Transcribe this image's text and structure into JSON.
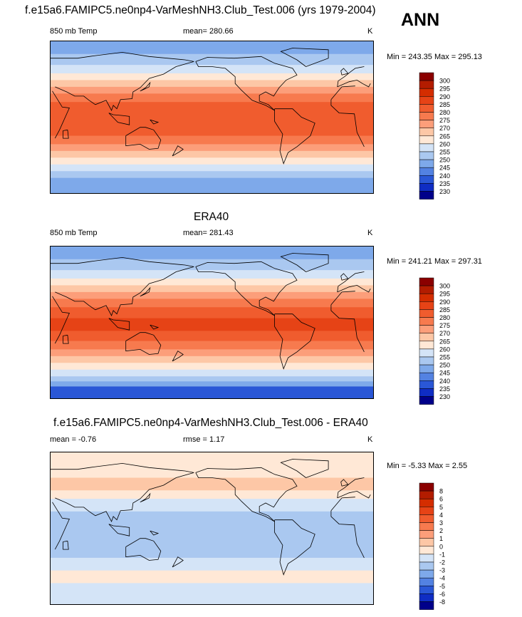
{
  "page": {
    "main_title": "f.e15a6.FAMIPC5.ne0np4-VarMeshNH3.Club_Test.006 (yrs 1979-2004)",
    "season": "ANN"
  },
  "panels": [
    {
      "id": "model",
      "heading": "",
      "left_label": "850 mb Temp",
      "center_label": "mean= 280.66",
      "units": "K",
      "minmax": "Min = 243.35 Max = 295.13"
    },
    {
      "id": "obs",
      "heading": "ERA40",
      "left_label": "850 mb Temp",
      "center_label": "mean= 281.43",
      "units": "K",
      "minmax": "Min = 241.21 Max = 297.31"
    },
    {
      "id": "diff",
      "heading": "f.e15a6.FAMIPC5.ne0np4-VarMeshNH3.Club_Test.006 - ERA40",
      "left_label": "mean =  -0.76",
      "center_label": "rmse =   1.17",
      "units": "K",
      "minmax": "Min =  -5.33 Max =   2.55"
    }
  ],
  "colorbars": {
    "temperature": {
      "labels": [
        "300",
        "295",
        "290",
        "285",
        "280",
        "275",
        "270",
        "265",
        "260",
        "255",
        "250",
        "245",
        "240",
        "235",
        "230"
      ],
      "colors": [
        "#8b0000",
        "#b31c00",
        "#d42d00",
        "#e64316",
        "#f05c2e",
        "#f77a4e",
        "#fc9e7a",
        "#fdc7a6",
        "#ffe8d6",
        "#d4e4f7",
        "#aac8f0",
        "#7ea9ea",
        "#5382e2",
        "#2a57d6",
        "#0f2dc4",
        "#00008a"
      ]
    },
    "difference": {
      "labels": [
        "8",
        "6",
        "5",
        "4",
        "3",
        "2",
        "1",
        "0",
        "-1",
        "-2",
        "-3",
        "-4",
        "-5",
        "-6",
        "-8"
      ],
      "colors": [
        "#8b0000",
        "#b31c00",
        "#d42d00",
        "#e64316",
        "#f05c2e",
        "#f77a4e",
        "#fc9e7a",
        "#fdc7a6",
        "#ffe8d6",
        "#d4e4f7",
        "#aac8f0",
        "#7ea9ea",
        "#5382e2",
        "#2a57d6",
        "#0f2dc4",
        "#00008a"
      ]
    }
  },
  "map_fields": {
    "model": {
      "bands": [
        {
          "lat": 90,
          "color": "#7ea9ea"
        },
        {
          "lat": 75,
          "color": "#aac8f0"
        },
        {
          "lat": 62,
          "color": "#d4e4f7"
        },
        {
          "lat": 52,
          "color": "#ffe8d6"
        },
        {
          "lat": 44,
          "color": "#fdc7a6"
        },
        {
          "lat": 36,
          "color": "#fc9e7a"
        },
        {
          "lat": 28,
          "color": "#f77a4e"
        },
        {
          "lat": 18,
          "color": "#f05c2e"
        },
        {
          "lat": -12,
          "color": "#f05c2e"
        },
        {
          "lat": -22,
          "color": "#f77a4e"
        },
        {
          "lat": -32,
          "color": "#fc9e7a"
        },
        {
          "lat": -40,
          "color": "#fdc7a6"
        },
        {
          "lat": -48,
          "color": "#ffe8d6"
        },
        {
          "lat": -56,
          "color": "#d4e4f7"
        },
        {
          "lat": -64,
          "color": "#aac8f0"
        },
        {
          "lat": -72,
          "color": "#7ea9ea"
        },
        {
          "lat": -90,
          "color": "#5382e2"
        }
      ]
    },
    "obs": {
      "bands": [
        {
          "lat": 90,
          "color": "#7ea9ea"
        },
        {
          "lat": 75,
          "color": "#aac8f0"
        },
        {
          "lat": 62,
          "color": "#d4e4f7"
        },
        {
          "lat": 52,
          "color": "#ffe8d6"
        },
        {
          "lat": 44,
          "color": "#fdc7a6"
        },
        {
          "lat": 36,
          "color": "#fc9e7a"
        },
        {
          "lat": 28,
          "color": "#f77a4e"
        },
        {
          "lat": 18,
          "color": "#f05c2e"
        },
        {
          "lat": 5,
          "color": "#e64316"
        },
        {
          "lat": -10,
          "color": "#f05c2e"
        },
        {
          "lat": -22,
          "color": "#f77a4e"
        },
        {
          "lat": -32,
          "color": "#fc9e7a"
        },
        {
          "lat": -40,
          "color": "#fdc7a6"
        },
        {
          "lat": -48,
          "color": "#ffe8d6"
        },
        {
          "lat": -56,
          "color": "#d4e4f7"
        },
        {
          "lat": -64,
          "color": "#aac8f0"
        },
        {
          "lat": -70,
          "color": "#7ea9ea"
        },
        {
          "lat": -76,
          "color": "#2a57d6"
        },
        {
          "lat": -90,
          "color": "#0f2dc4"
        }
      ]
    },
    "diff": {
      "bands": [
        {
          "lat": 90,
          "color": "#ffe8d6"
        },
        {
          "lat": 60,
          "color": "#fdc7a6"
        },
        {
          "lat": 45,
          "color": "#ffe8d6"
        },
        {
          "lat": 35,
          "color": "#d4e4f7"
        },
        {
          "lat": 20,
          "color": "#aac8f0"
        },
        {
          "lat": -20,
          "color": "#aac8f0"
        },
        {
          "lat": -35,
          "color": "#d4e4f7"
        },
        {
          "lat": -50,
          "color": "#ffe8d6"
        },
        {
          "lat": -65,
          "color": "#d4e4f7"
        },
        {
          "lat": -90,
          "color": "#ffe8d6"
        }
      ]
    }
  }
}
